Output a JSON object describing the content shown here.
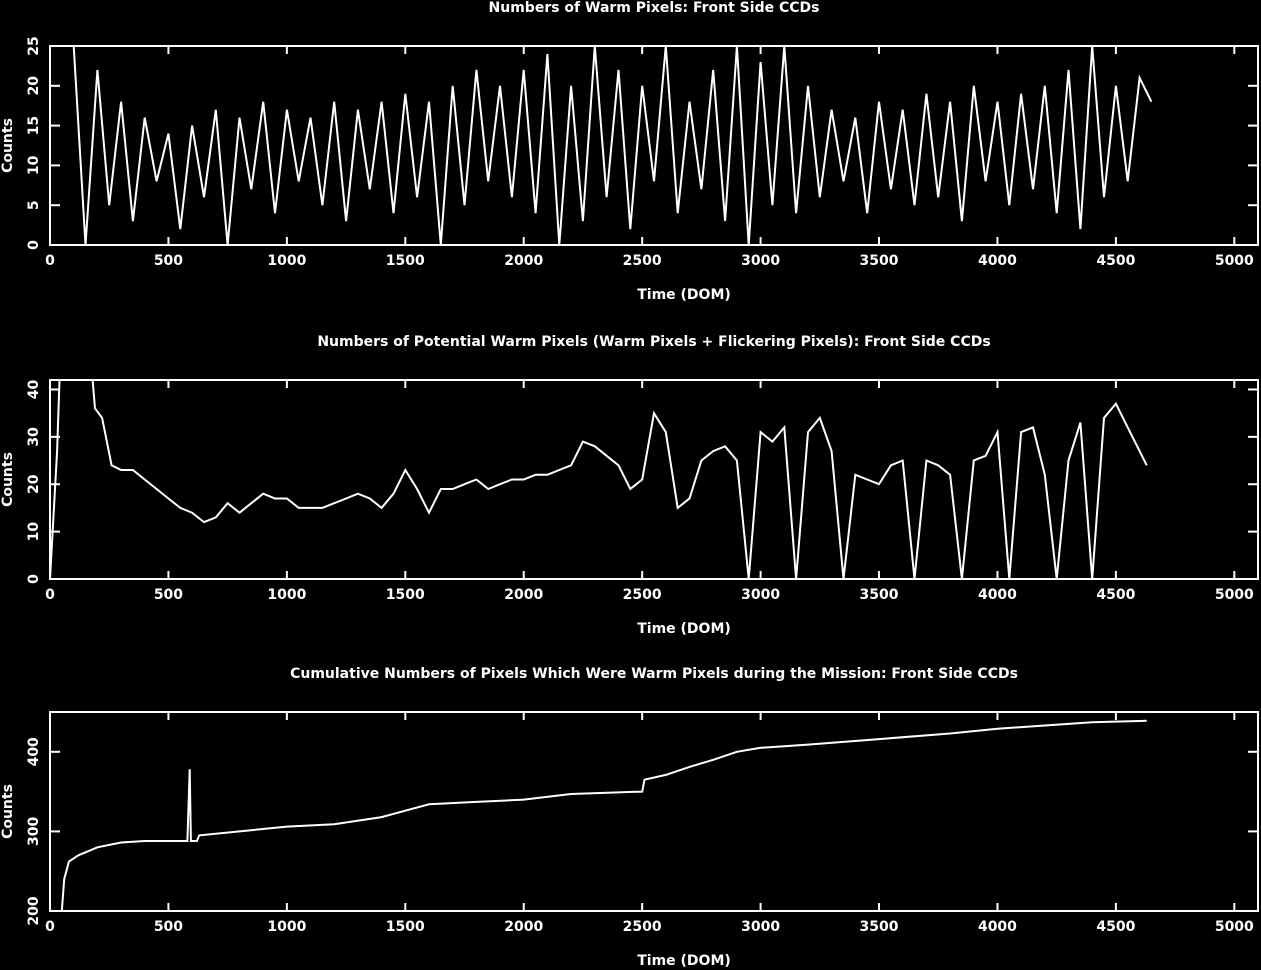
{
  "chart_data": [
    {
      "type": "line",
      "title": "Numbers of Warm Pixels: Front Side CCDs",
      "x_label": "Time (DOM)",
      "y_label": "Counts",
      "xlim": [
        0,
        5100
      ],
      "xticks": [
        0,
        500,
        1000,
        1500,
        2000,
        2500,
        3000,
        3500,
        4000,
        4500,
        5000
      ],
      "ylim": [
        0,
        25
      ],
      "yticks": [
        0,
        5,
        10,
        15,
        20,
        25
      ],
      "series": [
        {
          "color": "#ffffff",
          "x": [
            100,
            150,
            200,
            250,
            300,
            350,
            400,
            450,
            500,
            550,
            600,
            650,
            700,
            750,
            800,
            850,
            900,
            950,
            1000,
            1050,
            1100,
            1150,
            1200,
            1250,
            1300,
            1350,
            1400,
            1450,
            1500,
            1550,
            1600,
            1650,
            1700,
            1750,
            1800,
            1850,
            1900,
            1950,
            2000,
            2050,
            2100,
            2150,
            2200,
            2250,
            2300,
            2350,
            2400,
            2450,
            2500,
            2550,
            2600,
            2650,
            2700,
            2750,
            2800,
            2850,
            2900,
            2950,
            3000,
            3050,
            3100,
            3150,
            3200,
            3250,
            3300,
            3350,
            3400,
            3450,
            3500,
            3550,
            3600,
            3650,
            3700,
            3750,
            3800,
            3850,
            3900,
            3950,
            4000,
            4050,
            4100,
            4150,
            4200,
            4250,
            4300,
            4350,
            4400,
            4450,
            4500,
            4550,
            4600,
            4650
          ],
          "values": [
            25,
            0,
            22,
            5,
            18,
            3,
            16,
            8,
            14,
            2,
            15,
            6,
            17,
            0,
            16,
            7,
            18,
            4,
            17,
            8,
            16,
            5,
            18,
            3,
            17,
            7,
            18,
            4,
            19,
            6,
            18,
            0,
            20,
            5,
            22,
            8,
            20,
            6,
            22,
            4,
            24,
            0,
            20,
            3,
            25,
            6,
            22,
            2,
            20,
            8,
            25,
            4,
            18,
            7,
            22,
            3,
            25,
            0,
            23,
            5,
            25,
            4,
            20,
            6,
            17,
            8,
            16,
            4,
            18,
            7,
            17,
            5,
            19,
            6,
            18,
            3,
            20,
            8,
            18,
            5,
            19,
            7,
            20,
            4,
            22,
            2,
            25,
            6,
            20,
            8,
            21,
            18
          ]
        }
      ]
    },
    {
      "type": "line",
      "title": "Numbers of Potential Warm Pixels (Warm Pixels + Flickering Pixels): Front Side CCDs",
      "x_label": "Time (DOM)",
      "y_label": "Counts",
      "xlim": [
        0,
        5100
      ],
      "xticks": [
        0,
        500,
        1000,
        1500,
        2000,
        2500,
        3000,
        3500,
        4000,
        4500,
        5000
      ],
      "ylim": [
        0,
        42
      ],
      "yticks": [
        0,
        10,
        20,
        30,
        40
      ],
      "series": [
        {
          "color": "#ffffff",
          "x": [
            0,
            30,
            40,
            180,
            190,
            220,
            260,
            300,
            350,
            400,
            450,
            500,
            550,
            600,
            650,
            700,
            750,
            800,
            850,
            900,
            950,
            1000,
            1050,
            1100,
            1150,
            1200,
            1250,
            1300,
            1350,
            1400,
            1450,
            1500,
            1550,
            1600,
            1650,
            1700,
            1750,
            1800,
            1850,
            1900,
            1950,
            2000,
            2050,
            2100,
            2150,
            2200,
            2250,
            2300,
            2350,
            2400,
            2450,
            2500,
            2550,
            2600,
            2650,
            2700,
            2750,
            2800,
            2850,
            2900,
            2950,
            3000,
            3050,
            3100,
            3150,
            3200,
            3250,
            3300,
            3350,
            3400,
            3450,
            3500,
            3550,
            3600,
            3650,
            3700,
            3750,
            3800,
            3850,
            3900,
            3950,
            4000,
            4050,
            4100,
            4150,
            4200,
            4250,
            4300,
            4350,
            4400,
            4450,
            4500,
            4550,
            4600,
            4630
          ],
          "values": [
            0,
            27,
            42,
            42,
            36,
            34,
            24,
            23,
            23,
            21,
            19,
            17,
            15,
            14,
            12,
            13,
            16,
            14,
            16,
            18,
            17,
            17,
            15,
            15,
            15,
            16,
            17,
            18,
            17,
            15,
            18,
            23,
            19,
            14,
            19,
            19,
            20,
            21,
            19,
            20,
            21,
            21,
            22,
            22,
            23,
            24,
            29,
            28,
            26,
            24,
            19,
            21,
            35,
            31,
            15,
            17,
            25,
            27,
            28,
            25,
            0,
            31,
            29,
            32,
            0,
            31,
            34,
            27,
            0,
            22,
            21,
            20,
            24,
            25,
            0,
            25,
            24,
            22,
            0,
            25,
            26,
            31,
            0,
            31,
            32,
            22,
            0,
            25,
            33,
            0,
            34,
            37,
            32,
            27,
            24
          ]
        }
      ]
    },
    {
      "type": "line",
      "title": "Cumulative Numbers of Pixels Which Were Warm Pixels during the Mission: Front Side CCDs",
      "x_label": "Time (DOM)",
      "y_label": "Counts",
      "xlim": [
        0,
        5100
      ],
      "xticks": [
        0,
        500,
        1000,
        1500,
        2000,
        2500,
        3000,
        3500,
        4000,
        4500,
        5000
      ],
      "ylim": [
        200,
        450
      ],
      "yticks": [
        200,
        300,
        400
      ],
      "series": [
        {
          "color": "#ffffff",
          "x": [
            50,
            60,
            80,
            120,
            200,
            300,
            400,
            580,
            590,
            595,
            620,
            630,
            800,
            1000,
            1200,
            1400,
            1500,
            1600,
            1800,
            2000,
            2200,
            2400,
            2500,
            2510,
            2600,
            2700,
            2800,
            2900,
            3000,
            3200,
            3500,
            3800,
            4000,
            4200,
            4400,
            4630
          ],
          "values": [
            200,
            240,
            262,
            270,
            280,
            286,
            288,
            288,
            378,
            288,
            288,
            295,
            300,
            306,
            309,
            318,
            326,
            334,
            337,
            340,
            347,
            349,
            350,
            365,
            371,
            381,
            390,
            400,
            405,
            409,
            416,
            423,
            429,
            433,
            437,
            439
          ]
        }
      ]
    }
  ]
}
